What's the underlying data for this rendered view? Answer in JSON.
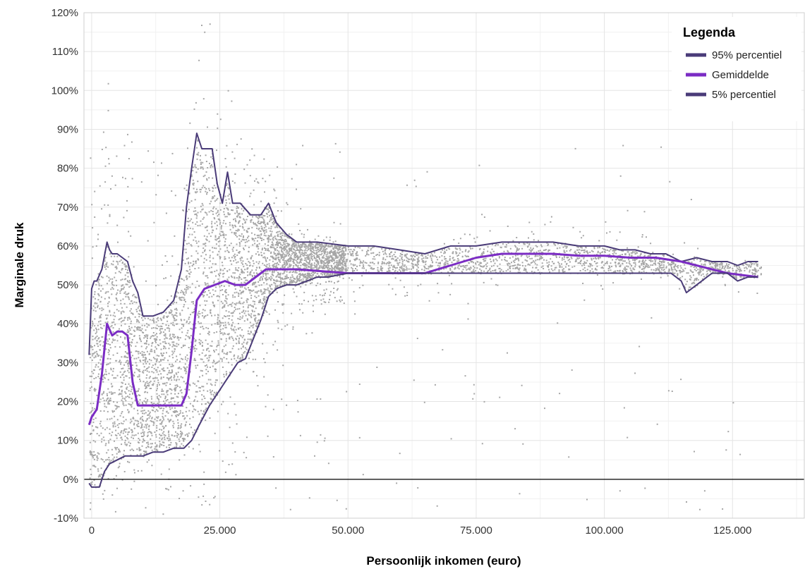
{
  "chart_data": {
    "type": "scatter",
    "title": "",
    "xlabel": "Persoonlijk inkomen (euro)",
    "ylabel": "Marginale druk",
    "xlim": [
      -1500,
      139000
    ],
    "ylim": [
      -10,
      120
    ],
    "x_ticks": [
      {
        "value": 0,
        "label": "0"
      },
      {
        "value": 25000,
        "label": "25.000"
      },
      {
        "value": 50000,
        "label": "50.000"
      },
      {
        "value": 75000,
        "label": "75.000"
      },
      {
        "value": 100000,
        "label": "100.000"
      },
      {
        "value": 125000,
        "label": "125.000"
      }
    ],
    "y_ticks": [
      {
        "value": -10,
        "label": "-10%"
      },
      {
        "value": 0,
        "label": "0%"
      },
      {
        "value": 10,
        "label": "10%"
      },
      {
        "value": 20,
        "label": "20%"
      },
      {
        "value": 30,
        "label": "30%"
      },
      {
        "value": 40,
        "label": "40%"
      },
      {
        "value": 50,
        "label": "50%"
      },
      {
        "value": 60,
        "label": "60%"
      },
      {
        "value": 70,
        "label": "70%"
      },
      {
        "value": 80,
        "label": "80%"
      },
      {
        "value": 90,
        "label": "90%"
      },
      {
        "value": 100,
        "label": "100%"
      },
      {
        "value": 110,
        "label": "110%"
      },
      {
        "value": 120,
        "label": "120%"
      }
    ],
    "grid": true,
    "zero_line": true,
    "legend": {
      "title": "Legenda",
      "position": "top-right"
    },
    "series": [
      {
        "name": "95% percentiel",
        "color": "#4a3b78",
        "x": [
          -500,
          0,
          500,
          1000,
          2000,
          3000,
          3500,
          4000,
          5000,
          6000,
          7000,
          8000,
          9000,
          10000,
          12000,
          14000,
          16000,
          17500,
          18500,
          19500,
          20500,
          21500,
          22500,
          23500,
          24500,
          25500,
          26500,
          27500,
          29000,
          31000,
          33000,
          34500,
          36000,
          38000,
          40000,
          44000,
          50000,
          55000,
          60000,
          65000,
          70000,
          75000,
          80000,
          85000,
          90000,
          95000,
          100000,
          103000,
          106000,
          109000,
          112000,
          115000,
          118000,
          121000,
          124000,
          126000,
          128000,
          130000
        ],
        "values": [
          32,
          49,
          51,
          51,
          54,
          61,
          59,
          58,
          58,
          57,
          56,
          51,
          48,
          42,
          42,
          43,
          46,
          54,
          70,
          80,
          89,
          85,
          85,
          85,
          76,
          71,
          79,
          71,
          71,
          68,
          68,
          71,
          66,
          63,
          61,
          61,
          60,
          60,
          59,
          58,
          60,
          60,
          61,
          61,
          61,
          60,
          60,
          59,
          59,
          58,
          58,
          56,
          57,
          56,
          56,
          55,
          56,
          56
        ]
      },
      {
        "name": "Gemiddelde",
        "color": "#7b2cc4",
        "x": [
          -500,
          0,
          1000,
          2000,
          3000,
          4000,
          5000,
          6000,
          7000,
          8000,
          9000,
          10000,
          12000,
          14000,
          16000,
          17500,
          18500,
          19500,
          20500,
          22000,
          24000,
          26000,
          28000,
          30000,
          32000,
          34000,
          36000,
          40000,
          45000,
          50000,
          55000,
          60000,
          65000,
          70000,
          75000,
          80000,
          85000,
          90000,
          95000,
          100000,
          105000,
          110000,
          115000,
          118000,
          121000,
          124000,
          127000,
          130000
        ],
        "values": [
          14,
          16,
          18,
          27,
          40,
          37,
          38,
          38,
          37,
          25,
          19,
          19,
          19,
          19,
          19,
          19,
          22,
          33,
          46,
          49,
          50,
          51,
          50,
          50,
          52,
          54,
          54,
          54,
          53.5,
          53,
          53,
          53,
          53,
          55,
          57,
          58,
          58,
          58,
          57.5,
          57.5,
          57,
          57,
          56,
          55,
          54,
          53,
          52.5,
          52
        ]
      },
      {
        "name": "5% percentiel",
        "color": "#4a3b78",
        "x": [
          -500,
          0,
          500,
          1000,
          1500,
          2500,
          3500,
          5000,
          6500,
          8000,
          10000,
          12000,
          14000,
          16000,
          18000,
          19500,
          21000,
          23000,
          25000,
          27000,
          28500,
          30000,
          31500,
          33000,
          34500,
          36000,
          38000,
          40000,
          42000,
          44000,
          46000,
          50000,
          55000,
          60000,
          65000,
          70000,
          75000,
          80000,
          85000,
          90000,
          95000,
          100000,
          105000,
          110000,
          113000,
          115000,
          116000,
          118000,
          121000,
          124000,
          126000,
          128000,
          130000
        ],
        "values": [
          -1,
          -2,
          -2,
          -2,
          -2,
          2,
          4,
          5,
          6,
          6,
          6,
          7,
          7,
          8,
          8,
          10,
          14,
          19,
          23,
          27,
          30,
          31,
          36,
          41,
          47,
          49,
          50,
          50,
          51,
          52,
          52,
          53,
          53,
          53,
          53,
          53,
          53,
          53,
          53,
          53,
          53,
          53,
          53,
          53,
          53,
          51,
          48,
          50,
          53,
          53,
          51,
          52,
          52
        ]
      }
    ]
  }
}
